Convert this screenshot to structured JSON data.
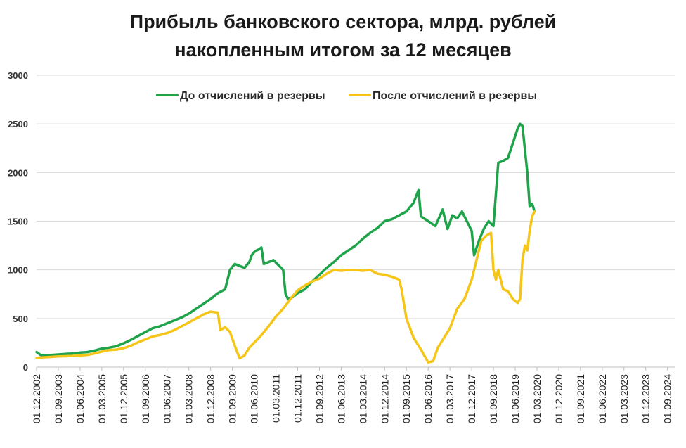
{
  "chart_data": {
    "type": "line",
    "title": "Прибыль банковского сектора, млрд. рублей",
    "subtitle": "накопленным итогом за 12 месяцев",
    "xlabel": "",
    "ylabel": "",
    "ylim": [
      0,
      3000
    ],
    "yticks": [
      0,
      500,
      1000,
      1500,
      2000,
      2500,
      3000
    ],
    "grid": true,
    "legend_position": "top",
    "x_start": "2002-12",
    "x_end": "2024-12",
    "x_tick_labels": [
      "01.12.2002",
      "01.09.2003",
      "01.06.2004",
      "01.03.2005",
      "01.12.2005",
      "01.09.2006",
      "01.06.2007",
      "01.03.2008",
      "01.12.2008",
      "01.09.2009",
      "01.06.2010",
      "01.03.2011",
      "01.12.2011",
      "01.09.2012",
      "01.06.2013",
      "01.03.2014",
      "01.12.2014",
      "01.09.2015",
      "01.06.2016",
      "01.03.2017",
      "01.12.2017",
      "01.09.2018",
      "01.06.2019",
      "01.03.2020",
      "01.12.2020",
      "01.09.2021",
      "01.06.2022",
      "01.03.2023",
      "01.12.2023",
      "01.09.2024"
    ],
    "series": [
      {
        "name": "До отчислений в резервы",
        "color": "#1ea34a",
        "points": [
          [
            "2002-12",
            155
          ],
          [
            "2003-02",
            120
          ],
          [
            "2003-06",
            125
          ],
          [
            "2003-09",
            130
          ],
          [
            "2003-12",
            135
          ],
          [
            "2004-03",
            140
          ],
          [
            "2004-06",
            150
          ],
          [
            "2004-09",
            155
          ],
          [
            "2004-12",
            170
          ],
          [
            "2005-03",
            190
          ],
          [
            "2005-06",
            200
          ],
          [
            "2005-09",
            215
          ],
          [
            "2005-12",
            245
          ],
          [
            "2006-03",
            280
          ],
          [
            "2006-06",
            320
          ],
          [
            "2006-09",
            360
          ],
          [
            "2006-12",
            400
          ],
          [
            "2007-03",
            420
          ],
          [
            "2007-06",
            450
          ],
          [
            "2007-09",
            480
          ],
          [
            "2007-12",
            510
          ],
          [
            "2008-03",
            550
          ],
          [
            "2008-06",
            600
          ],
          [
            "2008-09",
            650
          ],
          [
            "2008-12",
            700
          ],
          [
            "2009-03",
            760
          ],
          [
            "2009-06",
            800
          ],
          [
            "2009-08",
            1000
          ],
          [
            "2009-10",
            1060
          ],
          [
            "2009-12",
            1040
          ],
          [
            "2010-02",
            1020
          ],
          [
            "2010-04",
            1080
          ],
          [
            "2010-05",
            1150
          ],
          [
            "2010-06",
            1180
          ],
          [
            "2010-07",
            1200
          ],
          [
            "2010-08",
            1210
          ],
          [
            "2010-09",
            1230
          ],
          [
            "2010-10",
            1060
          ],
          [
            "2010-12",
            1080
          ],
          [
            "2011-02",
            1100
          ],
          [
            "2011-04",
            1050
          ],
          [
            "2011-06",
            1000
          ],
          [
            "2011-07",
            750
          ],
          [
            "2011-08",
            700
          ],
          [
            "2011-10",
            720
          ],
          [
            "2011-12",
            760
          ],
          [
            "2012-03",
            800
          ],
          [
            "2012-06",
            880
          ],
          [
            "2012-09",
            950
          ],
          [
            "2012-12",
            1020
          ],
          [
            "2013-03",
            1080
          ],
          [
            "2013-06",
            1150
          ],
          [
            "2013-09",
            1200
          ],
          [
            "2013-12",
            1250
          ],
          [
            "2014-03",
            1320
          ],
          [
            "2014-06",
            1380
          ],
          [
            "2014-09",
            1430
          ],
          [
            "2014-12",
            1500
          ],
          [
            "2015-03",
            1520
          ],
          [
            "2015-06",
            1560
          ],
          [
            "2015-09",
            1600
          ],
          [
            "2015-12",
            1690
          ],
          [
            "2016-02",
            1820
          ],
          [
            "2016-03",
            1550
          ],
          [
            "2016-06",
            1500
          ],
          [
            "2016-09",
            1450
          ],
          [
            "2016-12",
            1620
          ],
          [
            "2017-02",
            1420
          ],
          [
            "2017-04",
            1560
          ],
          [
            "2017-06",
            1530
          ],
          [
            "2017-08",
            1600
          ],
          [
            "2017-10",
            1500
          ],
          [
            "2017-12",
            1400
          ],
          [
            "2018-01",
            1150
          ],
          [
            "2018-03",
            1300
          ],
          [
            "2018-05",
            1420
          ],
          [
            "2018-07",
            1500
          ],
          [
            "2018-09",
            1450
          ],
          [
            "2018-11",
            2100
          ],
          [
            "2019-01",
            2120
          ],
          [
            "2019-03",
            2150
          ],
          [
            "2019-05",
            2300
          ],
          [
            "2019-07",
            2450
          ],
          [
            "2019-08",
            2500
          ],
          [
            "2019-09",
            2480
          ],
          [
            "2019-11",
            2000
          ],
          [
            "2019-12",
            1650
          ],
          [
            "2020-01",
            1680
          ],
          [
            "2020-02",
            1600
          ]
        ]
      },
      {
        "name": "После отчислений в резервы",
        "color": "#f5c518",
        "points": [
          [
            "2002-12",
            95
          ],
          [
            "2003-02",
            100
          ],
          [
            "2003-06",
            105
          ],
          [
            "2003-09",
            110
          ],
          [
            "2003-12",
            112
          ],
          [
            "2004-03",
            115
          ],
          [
            "2004-06",
            120
          ],
          [
            "2004-09",
            125
          ],
          [
            "2004-12",
            140
          ],
          [
            "2005-03",
            160
          ],
          [
            "2005-06",
            175
          ],
          [
            "2005-09",
            180
          ],
          [
            "2005-12",
            195
          ],
          [
            "2006-03",
            220
          ],
          [
            "2006-06",
            255
          ],
          [
            "2006-09",
            285
          ],
          [
            "2006-12",
            315
          ],
          [
            "2007-03",
            330
          ],
          [
            "2007-06",
            350
          ],
          [
            "2007-09",
            380
          ],
          [
            "2007-12",
            420
          ],
          [
            "2008-03",
            460
          ],
          [
            "2008-06",
            500
          ],
          [
            "2008-09",
            540
          ],
          [
            "2008-12",
            570
          ],
          [
            "2009-03",
            560
          ],
          [
            "2009-04",
            380
          ],
          [
            "2009-06",
            410
          ],
          [
            "2009-08",
            360
          ],
          [
            "2009-10",
            220
          ],
          [
            "2009-12",
            90
          ],
          [
            "2010-02",
            120
          ],
          [
            "2010-04",
            200
          ],
          [
            "2010-06",
            250
          ],
          [
            "2010-09",
            330
          ],
          [
            "2010-12",
            420
          ],
          [
            "2011-03",
            520
          ],
          [
            "2011-06",
            600
          ],
          [
            "2011-09",
            700
          ],
          [
            "2011-12",
            790
          ],
          [
            "2012-03",
            840
          ],
          [
            "2012-06",
            880
          ],
          [
            "2012-09",
            910
          ],
          [
            "2012-12",
            960
          ],
          [
            "2013-03",
            1000
          ],
          [
            "2013-06",
            990
          ],
          [
            "2013-09",
            1000
          ],
          [
            "2013-12",
            1000
          ],
          [
            "2014-03",
            990
          ],
          [
            "2014-06",
            1000
          ],
          [
            "2014-09",
            960
          ],
          [
            "2014-12",
            950
          ],
          [
            "2015-03",
            930
          ],
          [
            "2015-06",
            900
          ],
          [
            "2015-07",
            800
          ],
          [
            "2015-09",
            500
          ],
          [
            "2015-12",
            300
          ],
          [
            "2016-03",
            180
          ],
          [
            "2016-06",
            50
          ],
          [
            "2016-08",
            60
          ],
          [
            "2016-10",
            200
          ],
          [
            "2016-12",
            280
          ],
          [
            "2017-03",
            400
          ],
          [
            "2017-06",
            600
          ],
          [
            "2017-09",
            700
          ],
          [
            "2017-12",
            900
          ],
          [
            "2018-02",
            1100
          ],
          [
            "2018-04",
            1300
          ],
          [
            "2018-06",
            1350
          ],
          [
            "2018-08",
            1380
          ],
          [
            "2018-09",
            1000
          ],
          [
            "2018-10",
            900
          ],
          [
            "2018-11",
            1000
          ],
          [
            "2019-01",
            800
          ],
          [
            "2019-03",
            780
          ],
          [
            "2019-05",
            700
          ],
          [
            "2019-07",
            660
          ],
          [
            "2019-08",
            700
          ],
          [
            "2019-09",
            1100
          ],
          [
            "2019-10",
            1250
          ],
          [
            "2019-11",
            1200
          ],
          [
            "2019-12",
            1400
          ],
          [
            "2020-01",
            1550
          ],
          [
            "2020-02",
            1600
          ]
        ]
      }
    ]
  }
}
